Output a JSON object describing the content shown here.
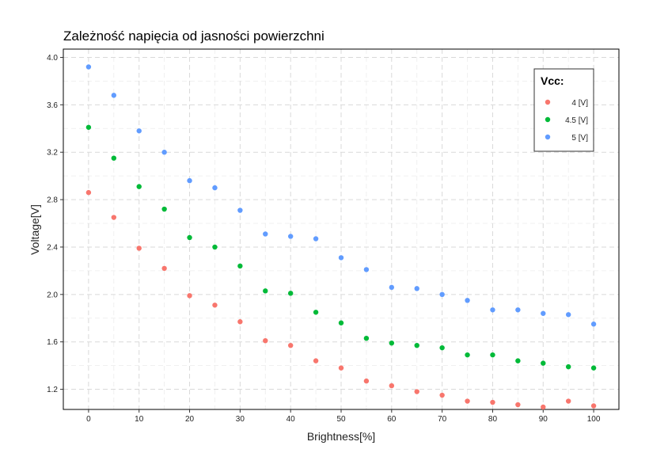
{
  "chart_data": {
    "type": "scatter",
    "title": "Zależność napięcia od jasności powierzchni",
    "xlabel": "Brightness[%]",
    "ylabel": "Voltage[V]",
    "xlim": [
      -5,
      105
    ],
    "ylim": [
      1.03,
      4.07
    ],
    "xticks": [
      0,
      10,
      20,
      30,
      40,
      50,
      60,
      70,
      80,
      90,
      100
    ],
    "xtick_labels": [
      "0",
      "10",
      "20",
      "30",
      "40",
      "50",
      "60",
      "70",
      "80",
      "90",
      "100"
    ],
    "yticks": [
      1.2,
      1.6,
      2.0,
      2.4,
      2.8,
      3.2,
      3.6,
      4.0
    ],
    "ytick_labels": [
      "1.2",
      "1.6",
      "2.0",
      "2.4",
      "2.8",
      "3.2",
      "3.6",
      "4.0"
    ],
    "grid": true,
    "legend": {
      "title": "Vcc:",
      "position": "top-right"
    },
    "x": [
      0,
      5,
      10,
      15,
      20,
      25,
      30,
      35,
      40,
      45,
      50,
      55,
      60,
      65,
      70,
      75,
      80,
      85,
      90,
      95,
      100
    ],
    "series": [
      {
        "name": "4 [V]",
        "color": "#F8766D",
        "values": [
          2.86,
          2.65,
          2.39,
          2.22,
          1.99,
          1.91,
          1.77,
          1.61,
          1.57,
          1.44,
          1.38,
          1.27,
          1.23,
          1.18,
          1.15,
          1.1,
          1.09,
          1.07,
          1.05,
          1.1,
          1.06
        ]
      },
      {
        "name": "4.5 [V]",
        "color": "#00BA38",
        "values": [
          3.41,
          3.15,
          2.91,
          2.72,
          2.48,
          2.4,
          2.24,
          2.03,
          2.01,
          1.85,
          1.76,
          1.63,
          1.59,
          1.57,
          1.55,
          1.49,
          1.49,
          1.44,
          1.42,
          1.39,
          1.38
        ]
      },
      {
        "name": "5 [V]",
        "color": "#619CFF",
        "values": [
          3.92,
          3.68,
          3.38,
          3.2,
          2.96,
          2.9,
          2.71,
          2.51,
          2.49,
          2.47,
          2.31,
          2.21,
          2.06,
          2.05,
          2.0,
          1.95,
          1.87,
          1.87,
          1.84,
          1.83,
          1.75
        ]
      }
    ]
  }
}
